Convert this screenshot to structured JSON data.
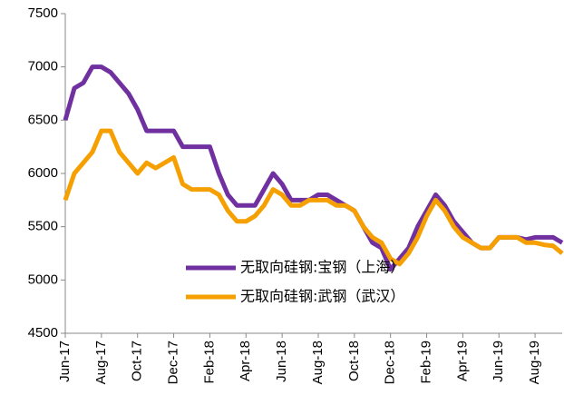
{
  "chart_data": {
    "type": "line",
    "categories": [
      "Jun-17",
      null,
      null,
      null,
      "Aug-17",
      null,
      null,
      null,
      "Oct-17",
      null,
      null,
      null,
      "Dec-17",
      null,
      null,
      null,
      "Feb-18",
      null,
      null,
      null,
      "Apr-18",
      null,
      null,
      null,
      "Jun-18",
      null,
      null,
      null,
      "Aug-18",
      null,
      null,
      null,
      "Oct-18",
      null,
      null,
      null,
      "Dec-18",
      null,
      null,
      null,
      "Feb-19",
      null,
      null,
      null,
      "Apr-19",
      null,
      null,
      null,
      "Jun-19",
      null,
      null,
      null,
      "Aug-19",
      null,
      null,
      null
    ],
    "series": [
      {
        "name": "无取向硅钢:宝钢（上海）",
        "color": "#7030a0",
        "values": [
          6500,
          6800,
          6850,
          7000,
          7000,
          6950,
          6850,
          6750,
          6600,
          6400,
          6400,
          6400,
          6400,
          6250,
          6250,
          6250,
          6250,
          6000,
          5800,
          5700,
          5700,
          5700,
          5850,
          6000,
          5900,
          5750,
          5750,
          5750,
          5800,
          5800,
          5750,
          5700,
          5650,
          5500,
          5350,
          5300,
          5100,
          5200,
          5300,
          5500,
          5650,
          5800,
          5700,
          5550,
          5450,
          5350,
          5300,
          5300,
          5400,
          5400,
          5400,
          5380,
          5400,
          5400,
          5400,
          5350
        ]
      },
      {
        "name": "无取向硅钢:武钢（武汉）",
        "color": "#f5a000",
        "values": [
          5750,
          6000,
          6100,
          6200,
          6400,
          6400,
          6200,
          6100,
          6000,
          6100,
          6050,
          6100,
          6150,
          5900,
          5850,
          5850,
          5850,
          5800,
          5650,
          5550,
          5550,
          5600,
          5700,
          5850,
          5800,
          5700,
          5700,
          5750,
          5750,
          5750,
          5700,
          5700,
          5650,
          5500,
          5400,
          5350,
          5200,
          5150,
          5250,
          5400,
          5600,
          5750,
          5650,
          5500,
          5400,
          5350,
          5300,
          5300,
          5400,
          5400,
          5400,
          5350,
          5350,
          5330,
          5320,
          5250
        ]
      }
    ],
    "ylim": [
      4500,
      7500
    ],
    "yticks": [
      4500,
      5000,
      5500,
      6000,
      6500,
      7000,
      7500
    ],
    "grid": false,
    "legend": "lower center"
  }
}
